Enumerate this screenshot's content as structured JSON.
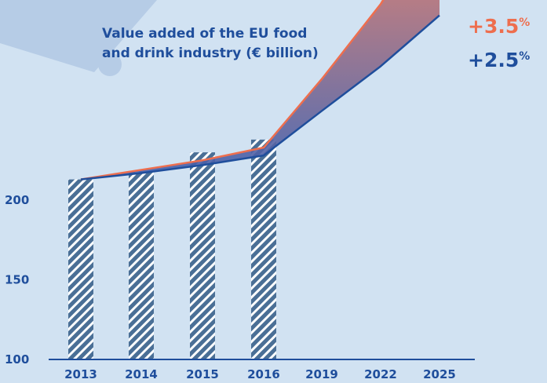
{
  "chart_data": {
    "type": "bar",
    "title_lines": [
      "Value added of the EU food",
      "and drink industry (€ billion)"
    ],
    "categories": [
      "2013",
      "2014",
      "2015",
      "2016",
      "2019",
      "2022",
      "2025"
    ],
    "bars": [
      {
        "year": "2013",
        "value": 213
      },
      {
        "year": "2014",
        "value": 218
      },
      {
        "year": "2015",
        "value": 230
      },
      {
        "year": "2016",
        "value": 238
      }
    ],
    "series": [
      {
        "name": "+3.5%",
        "color": "#ee6e4e",
        "x": [
          "2013",
          "2014",
          "2015",
          "2016",
          "2019",
          "2022",
          "2025"
        ],
        "values": [
          213,
          219,
          225,
          233,
          276,
          323,
          384
        ]
      },
      {
        "name": "+2.5%",
        "color": "#1f4e9c",
        "x": [
          "2013",
          "2014",
          "2015",
          "2016",
          "2019",
          "2022",
          "2025"
        ],
        "values": [
          213,
          217,
          222,
          228,
          256,
          284,
          316
        ]
      }
    ],
    "yticks": [
      100,
      150,
      200
    ],
    "ylim": [
      100,
      384
    ],
    "growth_labels": [
      {
        "number": "+3.5",
        "unit": "%",
        "color": "#ee6e4e"
      },
      {
        "number": "+2.5",
        "unit": "%",
        "color": "#1f4e9c"
      }
    ],
    "colors": {
      "background": "#d1e2f2",
      "corner_shape": "#b6cce6",
      "bar_hatch": "#4a6f96",
      "axis": "#1f4e9c",
      "band_top": "#ee6e4e",
      "band_bottom": "#1f4e9c"
    }
  }
}
